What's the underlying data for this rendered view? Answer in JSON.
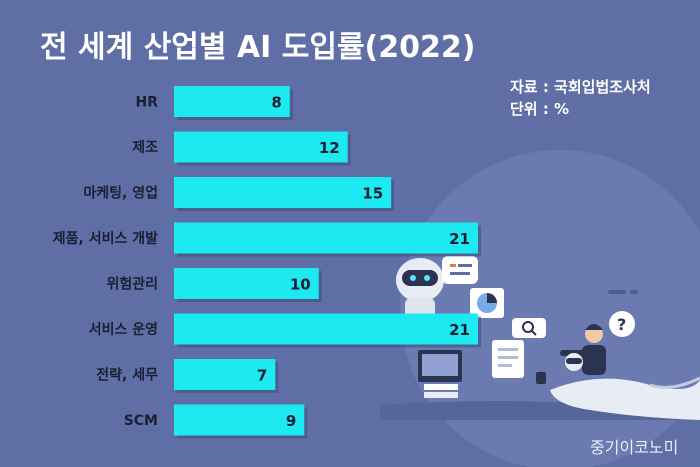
{
  "chart_data": {
    "type": "bar",
    "orientation": "horizontal",
    "title": "전 세계 산업별 AI 도입률(2022)",
    "categories": [
      "HR",
      "제조",
      "마케팅, 영업",
      "제품, 서비스 개발",
      "위험관리",
      "서비스 운영",
      "전략, 세무",
      "SCM"
    ],
    "values": [
      8,
      12,
      15,
      21,
      10,
      21,
      7,
      9
    ],
    "xlabel": "",
    "ylabel": "",
    "xlim": [
      0,
      24
    ],
    "grid": false,
    "legend": "none",
    "bar_color": "#1de9f0"
  },
  "source": {
    "line1": "자료 : 국회입법조사처",
    "line2": "단위 : %"
  },
  "credit": "중기이코노미",
  "colors": {
    "background": "#5f6fa6",
    "bar": "#1de9f0",
    "label": "#1a1f33",
    "value": "#1a1f33"
  }
}
